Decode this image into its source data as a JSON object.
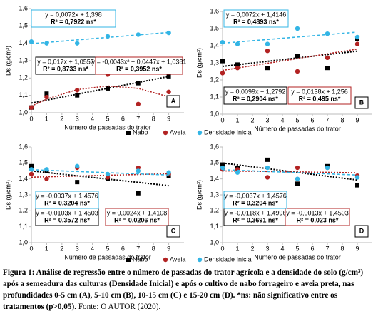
{
  "chart_data": [
    {
      "type": "scatter",
      "panel": "A",
      "x_label": "Número de passadas do trator",
      "y_label": "Ds (g/cm³)",
      "x": [
        0,
        1,
        3,
        5,
        7,
        9
      ],
      "xlim": [
        0,
        10
      ],
      "xticks": [
        0,
        1,
        2,
        3,
        4,
        5,
        6,
        7,
        8,
        9
      ],
      "ylim": [
        1,
        1.6
      ],
      "yticks": [
        {
          "value": 1,
          "label": "1,0"
        },
        {
          "value": 1.1,
          "label": "1,1"
        },
        {
          "value": 1.2,
          "label": "1,2"
        },
        {
          "value": 1.3,
          "label": "1,3"
        },
        {
          "value": 1.4,
          "label": "1,4"
        },
        {
          "value": 1.5,
          "label": "1,5"
        },
        {
          "value": 1.6,
          "label": "1,6"
        }
      ],
      "series": [
        {
          "name": "Nabo",
          "color": "#000000",
          "marker": "square",
          "values": [
            1.03,
            1.11,
            1.1,
            1.14,
            1.17,
            1.21
          ],
          "equation": "y = 0,017x + 1,0557",
          "r2": "R² = 0,8733 ns*",
          "trend": {
            "x": [
              0,
              9
            ],
            "values": [
              1.0557,
              1.2087
            ]
          }
        },
        {
          "name": "Aveia",
          "color": "#b22222",
          "marker": "circle",
          "values": [
            1.03,
            1.09,
            1.13,
            1.22,
            1.05,
            1.12
          ],
          "equation": "y = -0,0043x² + 0,0447x + 1,0381",
          "r2": "R² = 0,3952 ns*",
          "trend": {
            "x": [
              0,
              1,
              3,
              5,
              7,
              9
            ],
            "values": [
              1.0381,
              1.0785,
              1.1335,
              1.1541,
              1.1403,
              1.0921
            ]
          }
        },
        {
          "name": "Densidade Inicial",
          "color": "#33b5e5",
          "marker": "circle",
          "values": [
            1.41,
            1.4,
            1.4,
            1.44,
            1.45,
            1.46
          ],
          "equation": "y = 0,0072x + 1,398",
          "r2": "R² = 0,7922 ns*",
          "trend": {
            "x": [
              0,
              9
            ],
            "values": [
              1.398,
              1.4628
            ]
          }
        }
      ]
    },
    {
      "type": "scatter",
      "panel": "B",
      "x_label": "Número de passadas do trator",
      "y_label": "Ds (g/cm³)",
      "x": [
        0,
        1,
        3,
        5,
        7,
        9
      ],
      "xlim": [
        0,
        10
      ],
      "xticks": [
        0,
        1,
        2,
        3,
        4,
        5,
        6,
        7,
        8,
        9
      ],
      "ylim": [
        1,
        1.6
      ],
      "yticks": [
        {
          "value": 1,
          "label": "1,0"
        },
        {
          "value": 1.1,
          "label": "1,1"
        },
        {
          "value": 1.2,
          "label": "1,2"
        },
        {
          "value": 1.3,
          "label": "1,3"
        },
        {
          "value": 1.4,
          "label": "1,4"
        },
        {
          "value": 1.5,
          "label": "1,5"
        },
        {
          "value": 1.6,
          "label": "1,6"
        }
      ],
      "series": [
        {
          "name": "Nabo",
          "color": "#000000",
          "marker": "square",
          "values": [
            1.31,
            1.29,
            1.27,
            1.34,
            1.27,
            1.44
          ],
          "equation": "y = 0,0099x + 1,2792",
          "r2": "R² = 0,2904 ns*",
          "trend": {
            "x": [
              0,
              9
            ],
            "values": [
              1.2792,
              1.3683
            ]
          }
        },
        {
          "name": "Aveia",
          "color": "#b22222",
          "marker": "circle",
          "values": [
            1.24,
            1.27,
            1.37,
            1.25,
            1.33,
            1.41
          ],
          "equation": "y = 0,0138x + 1,256",
          "r2": "R² = 0,495 ns*",
          "trend": {
            "x": [
              0,
              9
            ],
            "values": [
              1.256,
              1.3802
            ]
          }
        },
        {
          "name": "Densidade Inicial",
          "color": "#33b5e5",
          "marker": "circle",
          "values": [
            1.42,
            1.41,
            1.41,
            1.5,
            1.47,
            1.45
          ],
          "equation": "y = 0,0072x + 1,4146",
          "r2": "R² = 0,4893 ns*",
          "trend": {
            "x": [
              0,
              9
            ],
            "values": [
              1.4146,
              1.4794
            ]
          }
        }
      ]
    },
    {
      "type": "scatter",
      "panel": "C",
      "x_label": "Número de passadas do trator",
      "y_label": "Ds (g/cm³)",
      "x": [
        0,
        1,
        3,
        5,
        7,
        9
      ],
      "xlim": [
        0,
        10
      ],
      "xticks": [
        0,
        1,
        2,
        3,
        4,
        5,
        6,
        7,
        8,
        9
      ],
      "ylim": [
        1,
        1.6
      ],
      "yticks": [
        {
          "value": 1,
          "label": "1,0"
        },
        {
          "value": 1.1,
          "label": "1,1"
        },
        {
          "value": 1.2,
          "label": "1,2"
        },
        {
          "value": 1.3,
          "label": "1,3"
        },
        {
          "value": 1.4,
          "label": "1,4"
        },
        {
          "value": 1.5,
          "label": "1,5"
        },
        {
          "value": 1.6,
          "label": "1,6"
        }
      ],
      "series": [
        {
          "name": "Nabo",
          "color": "#000000",
          "marker": "square",
          "values": [
            1.48,
            1.45,
            1.38,
            1.4,
            1.31,
            1.42
          ],
          "equation": "y = -0,0103x + 1,4503",
          "r2": "R² = 0,3572 ns*",
          "trend": {
            "x": [
              0,
              9
            ],
            "values": [
              1.4503,
              1.3576
            ]
          }
        },
        {
          "name": "Aveia",
          "color": "#b22222",
          "marker": "circle",
          "values": [
            1.43,
            1.4,
            1.47,
            1.41,
            1.47,
            1.43
          ],
          "equation": "y = 0,0024x + 1,4108",
          "r2": "R² = 0,0206 ns*",
          "trend": {
            "x": [
              0,
              9
            ],
            "values": [
              1.4108,
              1.4324
            ]
          }
        },
        {
          "name": "Densidade Inicial",
          "color": "#33b5e5",
          "marker": "circle",
          "values": [
            1.46,
            1.46,
            1.48,
            1.43,
            1.45,
            1.44
          ],
          "equation": "y = -0,0037x + 1,4576",
          "r2": "R² = 0,3204 ns*",
          "trend": {
            "x": [
              0,
              9
            ],
            "values": [
              1.4576,
              1.4243
            ]
          }
        }
      ]
    },
    {
      "type": "scatter",
      "panel": "D",
      "x_label": "Número de passadas do trator",
      "y_label": "Ds (g/cm³)",
      "x": [
        0,
        1,
        3,
        5,
        7,
        9
      ],
      "xlim": [
        0,
        10
      ],
      "xticks": [
        0,
        1,
        2,
        3,
        4,
        5,
        6,
        7,
        8,
        9
      ],
      "ylim": [
        1,
        1.6
      ],
      "yticks": [
        {
          "value": 1,
          "label": "1,0"
        },
        {
          "value": 1.1,
          "label": "1,1"
        },
        {
          "value": 1.2,
          "label": "1,2"
        },
        {
          "value": 1.3,
          "label": "1,3"
        },
        {
          "value": 1.4,
          "label": "1,4"
        },
        {
          "value": 1.5,
          "label": "1,5"
        },
        {
          "value": 1.6,
          "label": "1,6"
        }
      ],
      "series": [
        {
          "name": "Nabo",
          "color": "#000000",
          "marker": "square",
          "values": [
            1.49,
            1.47,
            1.52,
            1.37,
            1.48,
            1.36
          ],
          "equation": "y = -0,0118x + 1,4996",
          "r2": "R² = 0,3691 ns*",
          "trend": {
            "x": [
              0,
              9
            ],
            "values": [
              1.4996,
              1.3934
            ]
          }
        },
        {
          "name": "Aveia",
          "color": "#b22222",
          "marker": "circle",
          "values": [
            1.46,
            1.46,
            1.41,
            1.47,
            1.47,
            1.42
          ],
          "equation": "y = -0,0013x + 1,4503",
          "r2": "R² = 0,023 ns*",
          "trend": {
            "x": [
              0,
              9
            ],
            "values": [
              1.4503,
              1.4386
            ]
          }
        },
        {
          "name": "Densidade Inicial",
          "color": "#33b5e5",
          "marker": "circle",
          "values": [
            1.47,
            1.44,
            1.47,
            1.4,
            1.47,
            1.41
          ],
          "equation": "y = -0,0037x + 1,4576",
          "r2": "R² = 0,3204 ns*",
          "trend": {
            "x": [
              0,
              9
            ],
            "values": [
              1.4576,
              1.4243
            ]
          }
        }
      ]
    }
  ],
  "caption": "Figura 1: Análise de regressão entre o número de passadas do trator agrícola e a densidade do solo (g/cm³) após a semeadura das culturas (Densidade Inicial) e após o cultivo de nabo forrageiro e aveia preta, nas profundidades 0-5 cm (A), 5-10 cm (B), 10-15 cm (C) e 15-20 cm (D). *ns: não significativo entre os tratamentos (p>0,05).",
  "source": "Fonte: O AUTOR (2020)."
}
